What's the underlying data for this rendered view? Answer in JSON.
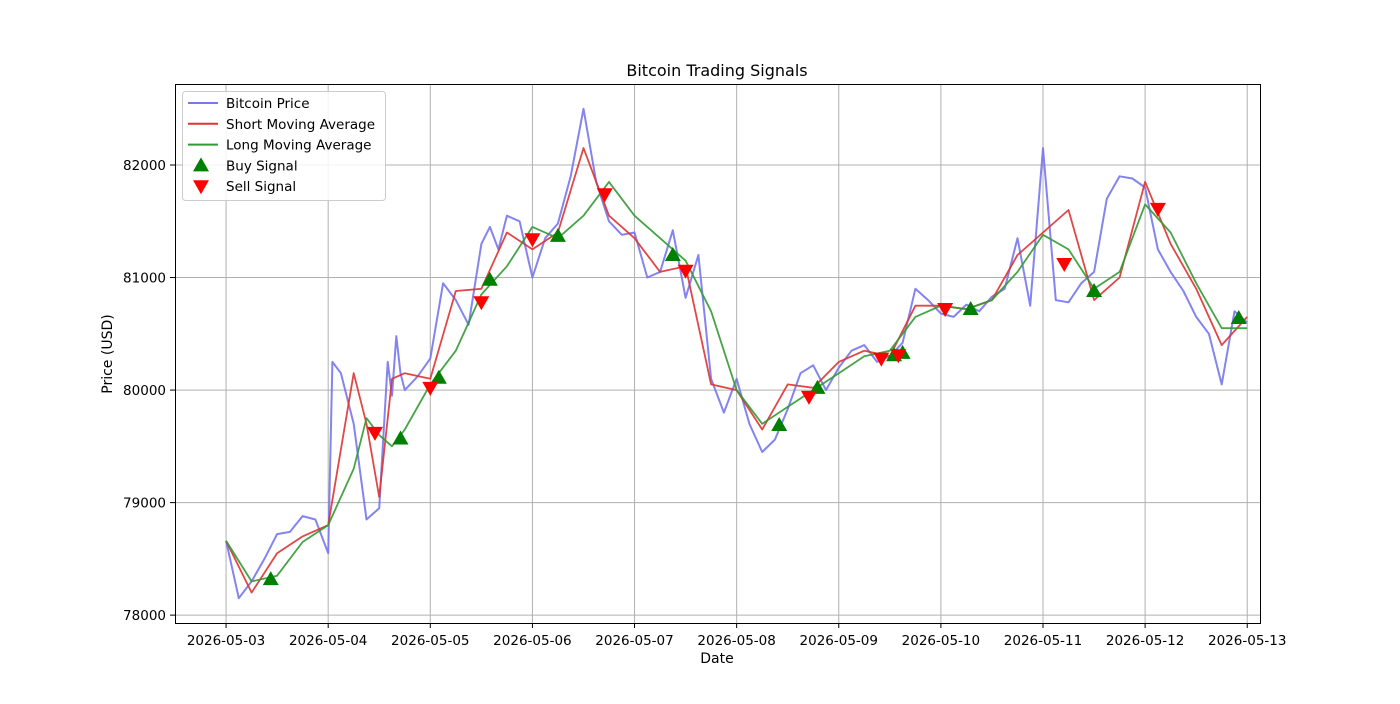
{
  "chart_data": {
    "type": "line",
    "title": "Bitcoin Trading Signals",
    "xlabel": "Date",
    "ylabel": "Price (USD)",
    "xlim": [
      "2026-05-02 12:00",
      "2026-05-13 03:00"
    ],
    "ylim": [
      77930,
      82720
    ],
    "grid": true,
    "legend_position": "upper-left",
    "x_ticks": [
      "2026-05-03",
      "2026-05-04",
      "2026-05-05",
      "2026-05-06",
      "2026-05-07",
      "2026-05-08",
      "2026-05-09",
      "2026-05-10",
      "2026-05-11",
      "2026-05-12",
      "2026-05-13"
    ],
    "y_ticks": [
      78000,
      79000,
      80000,
      81000,
      82000
    ],
    "series": [
      {
        "name": "Bitcoin Price",
        "color": "#7777ee",
        "x": [
          "2026-05-03 00:00",
          "2026-05-03 03:00",
          "2026-05-03 06:00",
          "2026-05-03 09:00",
          "2026-05-03 12:00",
          "2026-05-03 15:00",
          "2026-05-03 18:00",
          "2026-05-03 21:00",
          "2026-05-04 00:00",
          "2026-05-04 01:00",
          "2026-05-04 03:00",
          "2026-05-04 06:00",
          "2026-05-04 09:00",
          "2026-05-04 12:00",
          "2026-05-04 14:00",
          "2026-05-04 15:00",
          "2026-05-04 16:00",
          "2026-05-04 17:00",
          "2026-05-04 18:00",
          "2026-05-04 21:00",
          "2026-05-05 00:00",
          "2026-05-05 03:00",
          "2026-05-05 06:00",
          "2026-05-05 09:00",
          "2026-05-05 12:00",
          "2026-05-05 14:00",
          "2026-05-05 16:00",
          "2026-05-05 18:00",
          "2026-05-05 21:00",
          "2026-05-06 00:00",
          "2026-05-06 03:00",
          "2026-05-06 06:00",
          "2026-05-06 09:00",
          "2026-05-06 12:00",
          "2026-05-06 15:00",
          "2026-05-06 18:00",
          "2026-05-06 21:00",
          "2026-05-07 00:00",
          "2026-05-07 03:00",
          "2026-05-07 06:00",
          "2026-05-07 09:00",
          "2026-05-07 12:00",
          "2026-05-07 15:00",
          "2026-05-07 18:00",
          "2026-05-07 21:00",
          "2026-05-08 00:00",
          "2026-05-08 03:00",
          "2026-05-08 06:00",
          "2026-05-08 09:00",
          "2026-05-08 12:00",
          "2026-05-08 15:00",
          "2026-05-08 18:00",
          "2026-05-08 21:00",
          "2026-05-09 00:00",
          "2026-05-09 03:00",
          "2026-05-09 06:00",
          "2026-05-09 09:00",
          "2026-05-09 12:00",
          "2026-05-09 15:00",
          "2026-05-09 18:00",
          "2026-05-09 21:00",
          "2026-05-10 00:00",
          "2026-05-10 03:00",
          "2026-05-10 06:00",
          "2026-05-10 09:00",
          "2026-05-10 12:00",
          "2026-05-10 15:00",
          "2026-05-10 18:00",
          "2026-05-10 21:00",
          "2026-05-11 00:00",
          "2026-05-11 03:00",
          "2026-05-11 06:00",
          "2026-05-11 09:00",
          "2026-05-11 12:00",
          "2026-05-11 15:00",
          "2026-05-11 18:00",
          "2026-05-11 21:00",
          "2026-05-12 00:00",
          "2026-05-12 03:00",
          "2026-05-12 06:00",
          "2026-05-12 09:00",
          "2026-05-12 12:00",
          "2026-05-12 15:00",
          "2026-05-12 18:00",
          "2026-05-12 21:00",
          "2026-05-13 00:00"
        ],
        "values": [
          78660,
          78150,
          78300,
          78500,
          78720,
          78740,
          78880,
          78850,
          78550,
          80250,
          80150,
          79700,
          78850,
          78950,
          80250,
          79950,
          80480,
          80150,
          80000,
          80120,
          80280,
          80950,
          80800,
          80580,
          81300,
          81450,
          81250,
          81550,
          81500,
          81000,
          81350,
          81480,
          81900,
          82500,
          81850,
          81500,
          81380,
          81400,
          81000,
          81050,
          81420,
          80820,
          81200,
          80100,
          79800,
          80100,
          79700,
          79450,
          79560,
          79830,
          80150,
          80220,
          80000,
          80200,
          80350,
          80400,
          80250,
          80300,
          80420,
          80900,
          80800,
          80680,
          80650,
          80760,
          80700,
          80830,
          80900,
          81350,
          80750,
          82150,
          80800,
          80780,
          80950,
          81050,
          81700,
          81900,
          81880,
          81800,
          81250,
          81050,
          80880,
          80650,
          80500,
          80050,
          80700,
          80600
        ]
      },
      {
        "name": "Short Moving Average",
        "color": "#dd3333",
        "x": [
          "2026-05-03 00:00",
          "2026-05-03 06:00",
          "2026-05-03 12:00",
          "2026-05-03 18:00",
          "2026-05-04 00:00",
          "2026-05-04 06:00",
          "2026-05-04 09:00",
          "2026-05-04 12:00",
          "2026-05-04 15:00",
          "2026-05-04 18:00",
          "2026-05-05 00:00",
          "2026-05-05 06:00",
          "2026-05-05 12:00",
          "2026-05-05 18:00",
          "2026-05-06 00:00",
          "2026-05-06 06:00",
          "2026-05-06 12:00",
          "2026-05-06 18:00",
          "2026-05-07 00:00",
          "2026-05-07 06:00",
          "2026-05-07 12:00",
          "2026-05-07 18:00",
          "2026-05-08 00:00",
          "2026-05-08 06:00",
          "2026-05-08 12:00",
          "2026-05-08 18:00",
          "2026-05-09 00:00",
          "2026-05-09 06:00",
          "2026-05-09 12:00",
          "2026-05-09 18:00",
          "2026-05-10 00:00",
          "2026-05-10 06:00",
          "2026-05-10 12:00",
          "2026-05-10 18:00",
          "2026-05-11 00:00",
          "2026-05-11 06:00",
          "2026-05-11 12:00",
          "2026-05-11 18:00",
          "2026-05-12 00:00",
          "2026-05-12 06:00",
          "2026-05-12 12:00",
          "2026-05-12 18:00",
          "2026-05-13 00:00"
        ],
        "values": [
          78660,
          78200,
          78550,
          78700,
          78800,
          80150,
          79700,
          79050,
          80100,
          80150,
          80100,
          80880,
          80900,
          81400,
          81250,
          81400,
          82150,
          81550,
          81350,
          81050,
          81100,
          80050,
          80000,
          79650,
          80050,
          80020,
          80250,
          80350,
          80300,
          80750,
          80750,
          80720,
          80800,
          81200,
          81400,
          81600,
          80800,
          81000,
          81850,
          81300,
          80900,
          80400,
          80650
        ]
      },
      {
        "name": "Long Moving Average",
        "color": "#339933",
        "x": [
          "2026-05-03 00:00",
          "2026-05-03 06:00",
          "2026-05-03 12:00",
          "2026-05-03 18:00",
          "2026-05-04 00:00",
          "2026-05-04 06:00",
          "2026-05-04 09:00",
          "2026-05-04 12:00",
          "2026-05-04 15:00",
          "2026-05-04 18:00",
          "2026-05-05 00:00",
          "2026-05-05 06:00",
          "2026-05-05 12:00",
          "2026-05-05 18:00",
          "2026-05-06 00:00",
          "2026-05-06 06:00",
          "2026-05-06 12:00",
          "2026-05-06 18:00",
          "2026-05-07 00:00",
          "2026-05-07 06:00",
          "2026-05-07 12:00",
          "2026-05-07 18:00",
          "2026-05-08 00:00",
          "2026-05-08 06:00",
          "2026-05-08 12:00",
          "2026-05-08 18:00",
          "2026-05-09 00:00",
          "2026-05-09 06:00",
          "2026-05-09 12:00",
          "2026-05-09 18:00",
          "2026-05-10 00:00",
          "2026-05-10 06:00",
          "2026-05-10 12:00",
          "2026-05-10 18:00",
          "2026-05-11 00:00",
          "2026-05-11 06:00",
          "2026-05-11 12:00",
          "2026-05-11 18:00",
          "2026-05-12 00:00",
          "2026-05-12 06:00",
          "2026-05-12 12:00",
          "2026-05-12 18:00",
          "2026-05-13 00:00"
        ],
        "values": [
          78660,
          78300,
          78350,
          78650,
          78800,
          79300,
          79750,
          79600,
          79500,
          79650,
          80050,
          80350,
          80850,
          81100,
          81450,
          81350,
          81550,
          81850,
          81550,
          81350,
          81150,
          80700,
          80000,
          79700,
          79850,
          80000,
          80150,
          80300,
          80350,
          80650,
          80750,
          80720,
          80800,
          81050,
          81380,
          81250,
          80900,
          81050,
          81650,
          81400,
          80950,
          80550,
          80550
        ]
      }
    ],
    "buy_signals": {
      "name": "Buy Signal",
      "color": "#008000",
      "x": [
        "2026-05-03 10:30",
        "2026-05-04 17:00",
        "2026-05-05 02:00",
        "2026-05-05 14:00",
        "2026-05-06 06:00",
        "2026-05-07 09:00",
        "2026-05-08 10:00",
        "2026-05-08 19:00",
        "2026-05-09 13:00",
        "2026-05-09 15:00",
        "2026-05-10 07:00",
        "2026-05-11 12:00",
        "2026-05-12 22:00"
      ],
      "values": [
        78320,
        79570,
        80110,
        80980,
        81370,
        81200,
        79690,
        80020,
        80310,
        80330,
        80720,
        80880,
        80640
      ]
    },
    "sell_signals": {
      "name": "Sell Signal",
      "color": "#ff0000",
      "x": [
        "2026-05-04 11:00",
        "2026-05-05 00:00",
        "2026-05-05 12:00",
        "2026-05-06 00:00",
        "2026-05-06 17:00",
        "2026-05-07 12:00",
        "2026-05-08 17:00",
        "2026-05-09 10:00",
        "2026-05-09 14:00",
        "2026-05-10 01:00",
        "2026-05-11 05:00",
        "2026-05-12 03:00"
      ],
      "values": [
        79620,
        80020,
        80780,
        81340,
        81740,
        81060,
        79940,
        80280,
        80310,
        80720,
        81120,
        81610
      ]
    }
  }
}
